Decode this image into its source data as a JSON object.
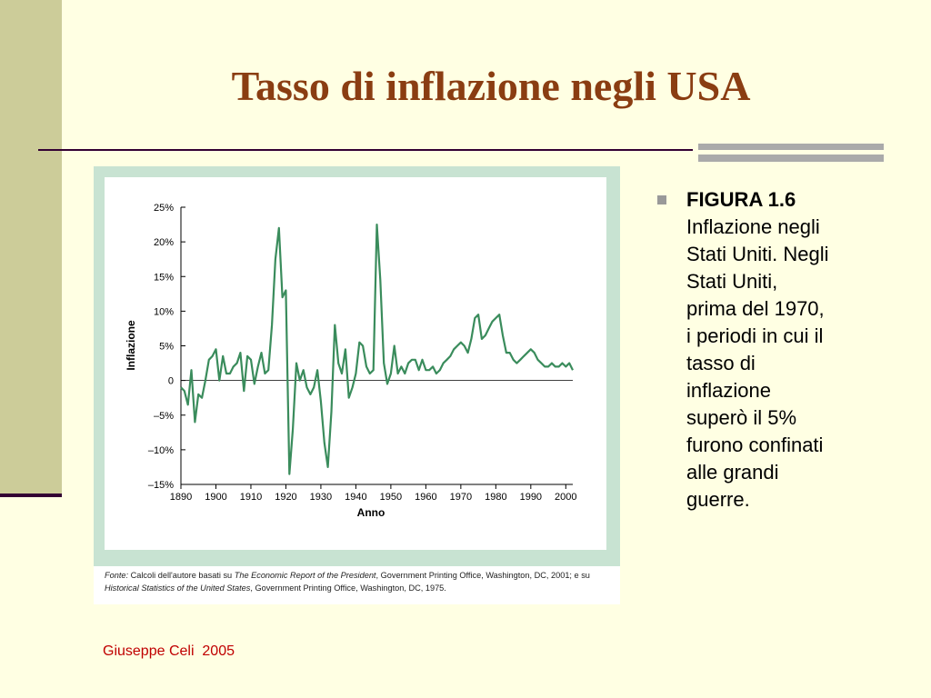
{
  "slide": {
    "title": "Tasso di inflazione negli USA",
    "caption_heading": "FIGURA 1.6",
    "caption_lines": [
      "Inflazione negli",
      "Stati Uniti. Negli",
      "Stati Uniti,",
      "prima del 1970,",
      "i periodi in cui il",
      "tasso di",
      "inflazione",
      "superò il 5%",
      "furono confinati",
      "alle grandi",
      "guerre."
    ],
    "source_parts": [
      {
        "text": "Fonte:",
        "italic": true
      },
      {
        "text": " Calcoli dell'autore basati su ",
        "italic": false
      },
      {
        "text": "The Economic Report of the President",
        "italic": true
      },
      {
        "text": ", Government Printing Office, Washington, DC, 2001; e su ",
        "italic": false
      },
      {
        "text": "Historical Statistics of the United States",
        "italic": true
      },
      {
        "text": ", Government Printing Office, Washington, DC, 1975.",
        "italic": false
      }
    ],
    "footer": "Giuseppe Celi  2005"
  },
  "chart_data": {
    "type": "line",
    "xlabel": "Anno",
    "ylabel": "Inflazione",
    "color": "#3a8c5c",
    "xlim": [
      1890,
      2002
    ],
    "ylim": [
      -15,
      25
    ],
    "xticks": [
      1890,
      1900,
      1910,
      1920,
      1930,
      1940,
      1950,
      1960,
      1970,
      1980,
      1990,
      2000
    ],
    "yticks": [
      {
        "value": -15,
        "label": "–15%"
      },
      {
        "value": -10,
        "label": "–10%"
      },
      {
        "value": -5,
        "label": "–5%"
      },
      0,
      {
        "value": 5,
        "label": "5%"
      },
      {
        "value": 10,
        "label": "10%"
      },
      {
        "value": 15,
        "label": "15%"
      },
      {
        "value": 20,
        "label": "20%"
      },
      {
        "value": 25,
        "label": "25%"
      }
    ],
    "x": [
      1890,
      1891,
      1892,
      1893,
      1894,
      1895,
      1896,
      1897,
      1898,
      1899,
      1900,
      1901,
      1902,
      1903,
      1904,
      1905,
      1906,
      1907,
      1908,
      1909,
      1910,
      1911,
      1912,
      1913,
      1914,
      1915,
      1916,
      1917,
      1918,
      1919,
      1920,
      1921,
      1922,
      1923,
      1924,
      1925,
      1926,
      1927,
      1928,
      1929,
      1930,
      1931,
      1932,
      1933,
      1934,
      1935,
      1936,
      1937,
      1938,
      1939,
      1940,
      1941,
      1942,
      1943,
      1944,
      1945,
      1946,
      1947,
      1948,
      1949,
      1950,
      1951,
      1952,
      1953,
      1954,
      1955,
      1956,
      1957,
      1958,
      1959,
      1960,
      1961,
      1962,
      1963,
      1964,
      1965,
      1966,
      1967,
      1968,
      1969,
      1970,
      1971,
      1972,
      1973,
      1974,
      1975,
      1976,
      1977,
      1978,
      1979,
      1980,
      1981,
      1982,
      1983,
      1984,
      1985,
      1986,
      1987,
      1988,
      1989,
      1990,
      1991,
      1992,
      1993,
      1994,
      1995,
      1996,
      1997,
      1998,
      1999,
      2000,
      2001,
      2002
    ],
    "values": [
      -1,
      -1.5,
      -3.5,
      1.5,
      -6,
      -2,
      -2.5,
      0,
      3,
      3.5,
      4.5,
      0,
      3.5,
      1,
      1,
      2,
      2.5,
      4,
      -1.5,
      3.5,
      3,
      -0.5,
      2,
      4,
      1,
      1.5,
      8,
      17.5,
      22,
      12,
      13,
      -13.5,
      -7,
      2.5,
      0,
      1.5,
      -1,
      -2,
      -1,
      1.5,
      -3,
      -9,
      -12.5,
      -4.5,
      8,
      2.5,
      1,
      4.5,
      -2.5,
      -1,
      1,
      5.5,
      5,
      2,
      1,
      1.5,
      22.5,
      14.5,
      2.5,
      -0.5,
      1,
      5,
      1,
      2,
      1,
      2.5,
      3,
      3,
      1.5,
      3,
      1.5,
      1.5,
      2,
      1,
      1.5,
      2.5,
      3,
      3.5,
      4.5,
      5,
      5.5,
      5,
      4,
      6,
      9,
      9.5,
      6,
      6.5,
      7.5,
      8.5,
      9,
      9.5,
      6.5,
      4,
      4,
      3,
      2.5,
      3,
      3.5,
      4,
      4.5,
      4,
      3,
      2.5,
      2,
      2,
      2.5,
      2,
      2,
      2.5,
      2,
      2.5,
      1.5
    ]
  }
}
